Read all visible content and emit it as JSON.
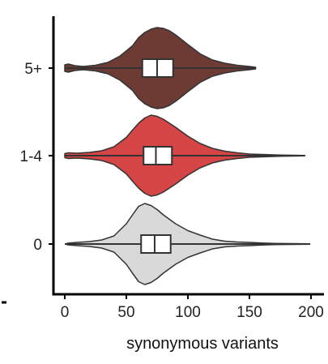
{
  "chart_data": {
    "type": "violin",
    "xlabel": "synonymous variants",
    "xlim": [
      -5,
      205
    ],
    "xticks": [
      0,
      50,
      100,
      150,
      200
    ],
    "grid": false,
    "legend": "none",
    "categories": [
      "0",
      "1-4",
      "5+"
    ],
    "series": [
      {
        "category": "0",
        "color": "#d9d9d9",
        "min": 0,
        "q1": 62,
        "median": 73,
        "q3": 86,
        "max": 199,
        "density": [
          [
            2,
            0.02
          ],
          [
            10,
            0.04
          ],
          [
            20,
            0.06
          ],
          [
            30,
            0.1
          ],
          [
            40,
            0.2
          ],
          [
            50,
            0.5
          ],
          [
            55,
            0.72
          ],
          [
            60,
            0.93
          ],
          [
            65,
            1.0
          ],
          [
            70,
            0.95
          ],
          [
            75,
            0.85
          ],
          [
            80,
            0.72
          ],
          [
            90,
            0.5
          ],
          [
            100,
            0.33
          ],
          [
            110,
            0.22
          ],
          [
            120,
            0.12
          ],
          [
            130,
            0.07
          ],
          [
            140,
            0.05
          ],
          [
            150,
            0.04
          ],
          [
            160,
            0.025
          ],
          [
            170,
            0.015
          ],
          [
            185,
            0.01
          ],
          [
            199,
            0.005
          ]
        ]
      },
      {
        "category": "1-4",
        "color": "#d64545",
        "min": 0,
        "q1": 64,
        "median": 74,
        "q3": 87,
        "max": 195,
        "density": [
          [
            0,
            0.05
          ],
          [
            3,
            0.07
          ],
          [
            10,
            0.06
          ],
          [
            20,
            0.08
          ],
          [
            30,
            0.12
          ],
          [
            40,
            0.22
          ],
          [
            50,
            0.45
          ],
          [
            55,
            0.63
          ],
          [
            60,
            0.8
          ],
          [
            65,
            0.93
          ],
          [
            70,
            1.0
          ],
          [
            75,
            0.97
          ],
          [
            80,
            0.9
          ],
          [
            90,
            0.7
          ],
          [
            100,
            0.48
          ],
          [
            110,
            0.3
          ],
          [
            120,
            0.18
          ],
          [
            130,
            0.11
          ],
          [
            140,
            0.07
          ],
          [
            150,
            0.04
          ],
          [
            160,
            0.03
          ],
          [
            175,
            0.015
          ],
          [
            195,
            0.005
          ]
        ]
      },
      {
        "category": "5+",
        "color": "#6d3b34",
        "min": 0,
        "q1": 63,
        "median": 75,
        "q3": 88,
        "max": 155,
        "density": [
          [
            0,
            0.08
          ],
          [
            3,
            0.1
          ],
          [
            8,
            0.06
          ],
          [
            15,
            0.04
          ],
          [
            25,
            0.07
          ],
          [
            35,
            0.14
          ],
          [
            45,
            0.3
          ],
          [
            55,
            0.55
          ],
          [
            60,
            0.75
          ],
          [
            65,
            0.88
          ],
          [
            70,
            0.96
          ],
          [
            75,
            1.0
          ],
          [
            80,
            0.98
          ],
          [
            85,
            0.92
          ],
          [
            90,
            0.82
          ],
          [
            100,
            0.58
          ],
          [
            110,
            0.35
          ],
          [
            120,
            0.2
          ],
          [
            130,
            0.12
          ],
          [
            140,
            0.07
          ],
          [
            150,
            0.04
          ],
          [
            155,
            0.02
          ]
        ]
      }
    ]
  }
}
